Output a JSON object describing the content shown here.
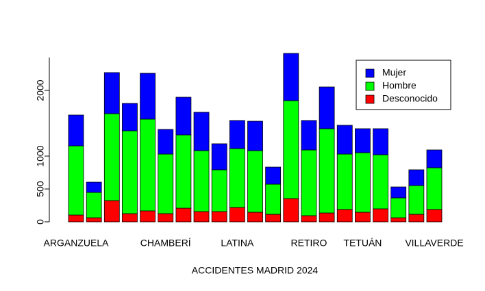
{
  "chart_data": {
    "type": "stacked_bar",
    "xlabel": "ACCIDENTES MADRID 2024",
    "categories": [
      "ARGANZUELA",
      null,
      null,
      null,
      null,
      "CHAMBERÍ",
      null,
      null,
      null,
      "LATINA",
      null,
      null,
      null,
      "RETIRO",
      null,
      null,
      "TETUÁN",
      null,
      null,
      null,
      "VILLAVERDE"
    ],
    "series": [
      {
        "name": "Desconocido",
        "color": "#ff0000",
        "values": [
          104,
          62,
          323,
          125,
          167,
          125,
          208,
          156,
          156,
          219,
          146,
          115,
          354,
          94,
          135,
          188,
          146,
          198,
          62,
          115,
          188
        ]
      },
      {
        "name": "Hombre",
        "color": "#00ff00",
        "values": [
          1052,
          386,
          1323,
          1260,
          1396,
          906,
          1115,
          927,
          636,
          896,
          937,
          458,
          1490,
          1000,
          1282,
          843,
          906,
          823,
          303,
          437,
          635
        ]
      },
      {
        "name": "Mujer",
        "color": "#0000ff",
        "values": [
          469,
          156,
          625,
          417,
          697,
          375,
          573,
          584,
          396,
          427,
          448,
          260,
          719,
          448,
          635,
          438,
          365,
          396,
          166,
          240,
          271
        ]
      }
    ],
    "ylim": [
      0,
      2500
    ],
    "yticks": [
      0,
      500,
      1000,
      2000
    ],
    "legend": "top-right"
  }
}
